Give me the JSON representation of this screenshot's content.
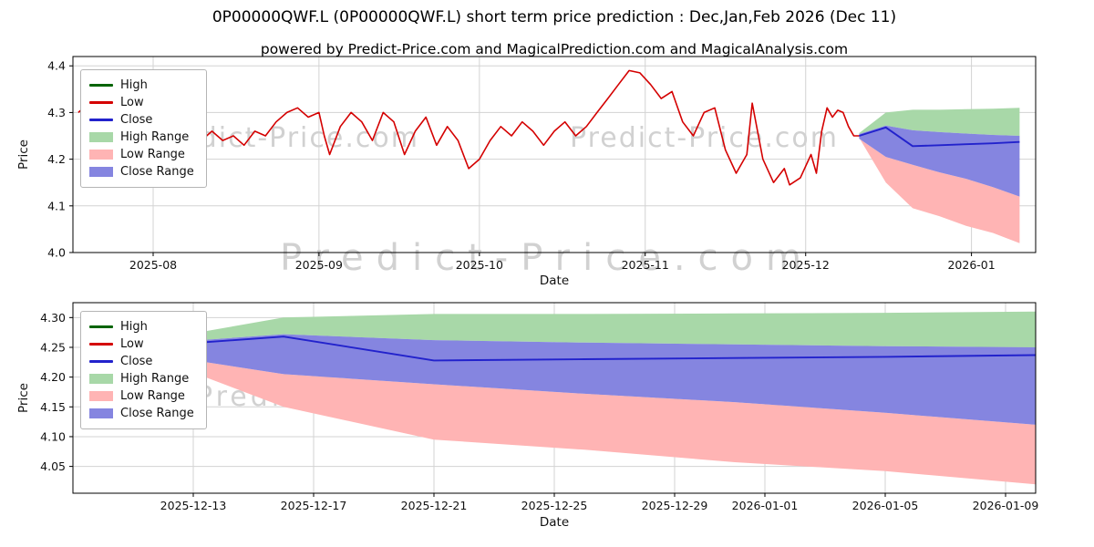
{
  "title": "0P00000QWF.L (0P00000QWF.L) short term price prediction : Dec,Jan,Feb 2026 (Dec 11)",
  "subtitle": "powered by Predict-Price.com and MagicalPrediction.com and MagicalAnalysis.com",
  "watermark": "Predict-Price.com",
  "colors": {
    "high": "#006400",
    "low": "#d40000",
    "close": "#2222cc",
    "high_range": "#a8d8a8",
    "low_range": "#ffb4b4",
    "close_range": "#8585e0",
    "grid": "#d3d3d3",
    "spine": "#000000",
    "tick_text": "#111111"
  },
  "legend": {
    "items": [
      {
        "label": "High",
        "swatch": "line",
        "color": "high"
      },
      {
        "label": "Low",
        "swatch": "line",
        "color": "low"
      },
      {
        "label": "Close",
        "swatch": "line",
        "color": "close"
      },
      {
        "label": "High Range",
        "swatch": "band",
        "color": "high_range"
      },
      {
        "label": "Low Range",
        "swatch": "band",
        "color": "low_range"
      },
      {
        "label": "Close Range",
        "swatch": "band",
        "color": "close_range"
      }
    ]
  },
  "chart_data": [
    {
      "type": "line",
      "title": "",
      "xlabel": "Date",
      "ylabel": "Price",
      "grid": true,
      "legend_position": "upper left",
      "ylim": [
        4.0,
        4.42
      ],
      "yticks": [
        {
          "v": 4.0,
          "label": "4.0"
        },
        {
          "v": 4.1,
          "label": "4.1"
        },
        {
          "v": 4.2,
          "label": "4.2"
        },
        {
          "v": 4.3,
          "label": "4.3"
        },
        {
          "v": 4.4,
          "label": "4.4"
        }
      ],
      "xlim": [
        "2025-07-17",
        "2026-01-13"
      ],
      "xticks": [
        {
          "date": "2025-08-01",
          "label": "2025-08"
        },
        {
          "date": "2025-09-01",
          "label": "2025-09"
        },
        {
          "date": "2025-10-01",
          "label": "2025-10"
        },
        {
          "date": "2025-11-01",
          "label": "2025-11"
        },
        {
          "date": "2025-12-01",
          "label": "2025-12"
        },
        {
          "date": "2026-01-01",
          "label": "2026-01"
        }
      ],
      "history": {
        "name": "Low",
        "points": [
          [
            "2025-07-18",
            4.3
          ],
          [
            "2025-07-19",
            4.31
          ],
          [
            "2025-07-21",
            4.26
          ],
          [
            "2025-07-23",
            4.28
          ],
          [
            "2025-07-25",
            4.22
          ],
          [
            "2025-07-27",
            4.25
          ],
          [
            "2025-07-29",
            4.23
          ],
          [
            "2025-07-31",
            4.26
          ],
          [
            "2025-08-02",
            4.24
          ],
          [
            "2025-08-04",
            4.26
          ],
          [
            "2025-08-06",
            4.22
          ],
          [
            "2025-08-08",
            4.25
          ],
          [
            "2025-08-10",
            4.24
          ],
          [
            "2025-08-12",
            4.26
          ],
          [
            "2025-08-14",
            4.24
          ],
          [
            "2025-08-16",
            4.25
          ],
          [
            "2025-08-18",
            4.23
          ],
          [
            "2025-08-20",
            4.26
          ],
          [
            "2025-08-22",
            4.25
          ],
          [
            "2025-08-24",
            4.28
          ],
          [
            "2025-08-26",
            4.3
          ],
          [
            "2025-08-28",
            4.31
          ],
          [
            "2025-08-30",
            4.29
          ],
          [
            "2025-09-01",
            4.3
          ],
          [
            "2025-09-02",
            4.25
          ],
          [
            "2025-09-03",
            4.21
          ],
          [
            "2025-09-05",
            4.27
          ],
          [
            "2025-09-07",
            4.3
          ],
          [
            "2025-09-09",
            4.28
          ],
          [
            "2025-09-11",
            4.24
          ],
          [
            "2025-09-13",
            4.3
          ],
          [
            "2025-09-15",
            4.28
          ],
          [
            "2025-09-17",
            4.21
          ],
          [
            "2025-09-19",
            4.26
          ],
          [
            "2025-09-21",
            4.29
          ],
          [
            "2025-09-23",
            4.23
          ],
          [
            "2025-09-25",
            4.27
          ],
          [
            "2025-09-27",
            4.24
          ],
          [
            "2025-09-29",
            4.18
          ],
          [
            "2025-10-01",
            4.2
          ],
          [
            "2025-10-03",
            4.24
          ],
          [
            "2025-10-05",
            4.27
          ],
          [
            "2025-10-07",
            4.25
          ],
          [
            "2025-10-09",
            4.28
          ],
          [
            "2025-10-11",
            4.26
          ],
          [
            "2025-10-13",
            4.23
          ],
          [
            "2025-10-15",
            4.26
          ],
          [
            "2025-10-17",
            4.28
          ],
          [
            "2025-10-19",
            4.25
          ],
          [
            "2025-10-21",
            4.27
          ],
          [
            "2025-10-23",
            4.3
          ],
          [
            "2025-10-25",
            4.33
          ],
          [
            "2025-10-27",
            4.36
          ],
          [
            "2025-10-29",
            4.39
          ],
          [
            "2025-10-31",
            4.385
          ],
          [
            "2025-11-02",
            4.36
          ],
          [
            "2025-11-04",
            4.33
          ],
          [
            "2025-11-06",
            4.345
          ],
          [
            "2025-11-08",
            4.28
          ],
          [
            "2025-11-10",
            4.25
          ],
          [
            "2025-11-12",
            4.3
          ],
          [
            "2025-11-14",
            4.31
          ],
          [
            "2025-11-16",
            4.22
          ],
          [
            "2025-11-18",
            4.17
          ],
          [
            "2025-11-20",
            4.21
          ],
          [
            "2025-11-21",
            4.32
          ],
          [
            "2025-11-23",
            4.2
          ],
          [
            "2025-11-25",
            4.15
          ],
          [
            "2025-11-27",
            4.18
          ],
          [
            "2025-11-28",
            4.145
          ],
          [
            "2025-11-30",
            4.16
          ],
          [
            "2025-12-02",
            4.21
          ],
          [
            "2025-12-03",
            4.17
          ],
          [
            "2025-12-04",
            4.26
          ],
          [
            "2025-12-05",
            4.31
          ],
          [
            "2025-12-06",
            4.29
          ],
          [
            "2025-12-07",
            4.305
          ],
          [
            "2025-12-08",
            4.3
          ],
          [
            "2025-12-09",
            4.27
          ],
          [
            "2025-12-10",
            4.25
          ],
          [
            "2025-12-11",
            4.25
          ]
        ]
      },
      "forecast": {
        "x": [
          "2025-12-11",
          "2025-12-16",
          "2025-12-21",
          "2025-12-26",
          "2025-12-31",
          "2026-01-05",
          "2026-01-10"
        ],
        "close": [
          4.25,
          4.268,
          4.228,
          4.23,
          4.232,
          4.234,
          4.237
        ],
        "high_upper": [
          4.256,
          4.3,
          4.306,
          4.306,
          4.307,
          4.308,
          4.31
        ],
        "close_upper": [
          4.254,
          4.272,
          4.262,
          4.258,
          4.255,
          4.252,
          4.25
        ],
        "close_lower": [
          4.244,
          4.205,
          4.188,
          4.172,
          4.158,
          4.14,
          4.12
        ],
        "low_lower": [
          4.246,
          4.15,
          4.095,
          4.078,
          4.057,
          4.042,
          4.02
        ]
      }
    },
    {
      "type": "line",
      "title": "",
      "xlabel": "Date",
      "ylabel": "Price",
      "grid": true,
      "legend_position": "upper left",
      "ylim": [
        4.005,
        4.325
      ],
      "yticks": [
        {
          "v": 4.05,
          "label": "4.05"
        },
        {
          "v": 4.1,
          "label": "4.10"
        },
        {
          "v": 4.15,
          "label": "4.15"
        },
        {
          "v": 4.2,
          "label": "4.20"
        },
        {
          "v": 4.25,
          "label": "4.25"
        },
        {
          "v": 4.3,
          "label": "4.30"
        }
      ],
      "xlim": [
        "2025-12-09",
        "2026-01-10"
      ],
      "xticks": [
        {
          "date": "2025-12-13",
          "label": "2025-12-13"
        },
        {
          "date": "2025-12-17",
          "label": "2025-12-17"
        },
        {
          "date": "2025-12-21",
          "label": "2025-12-21"
        },
        {
          "date": "2025-12-25",
          "label": "2025-12-25"
        },
        {
          "date": "2025-12-29",
          "label": "2025-12-29"
        },
        {
          "date": "2026-01-01",
          "label": "2026-01-01"
        },
        {
          "date": "2026-01-05",
          "label": "2026-01-05"
        },
        {
          "date": "2026-01-09",
          "label": "2026-01-09"
        }
      ],
      "forecast": {
        "x": [
          "2025-12-11",
          "2025-12-16",
          "2025-12-21",
          "2025-12-26",
          "2025-12-31",
          "2026-01-05",
          "2026-01-10"
        ],
        "close": [
          4.25,
          4.268,
          4.228,
          4.23,
          4.232,
          4.234,
          4.237
        ],
        "high_upper": [
          4.256,
          4.3,
          4.306,
          4.306,
          4.307,
          4.308,
          4.31
        ],
        "close_upper": [
          4.254,
          4.272,
          4.262,
          4.258,
          4.255,
          4.252,
          4.25
        ],
        "close_lower": [
          4.244,
          4.205,
          4.188,
          4.172,
          4.158,
          4.14,
          4.12
        ],
        "low_lower": [
          4.246,
          4.15,
          4.095,
          4.078,
          4.057,
          4.042,
          4.02
        ]
      }
    }
  ]
}
